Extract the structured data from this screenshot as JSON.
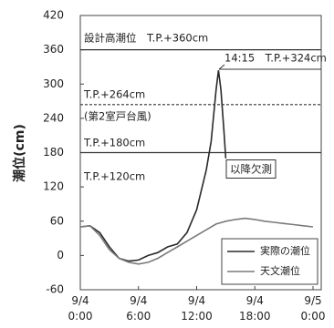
{
  "chart_data": {
    "type": "line",
    "y_label": "潮位(cm)",
    "ylim": [
      -60,
      420
    ],
    "yticks": [
      -60,
      0,
      60,
      120,
      180,
      240,
      300,
      360,
      420
    ],
    "xlim": [
      0,
      24
    ],
    "xticks": [
      {
        "value": 0,
        "label": "9/4 0:00"
      },
      {
        "value": 6,
        "label": "9/4 6:00"
      },
      {
        "value": 12,
        "label": "9/4 12:00"
      },
      {
        "value": 18,
        "label": "9/4 18:00"
      },
      {
        "value": 24,
        "label": "9/5 0:00"
      }
    ],
    "reference_lines": [
      {
        "value": 360,
        "style": "solid"
      },
      {
        "value": 264,
        "style": "dashed"
      },
      {
        "value": 180,
        "style": "solid"
      }
    ],
    "annotations": [
      "設計高潮位　T.P.+360cm",
      "14:15　T.P.+324cm",
      "T.P.+264cm",
      "(第2室戸台風)",
      "T.P.+180cm",
      "T.P.+120cm",
      "以降欠測"
    ],
    "legend": "lower right",
    "series": [
      {
        "name": "実際の潮位",
        "color": "#2a2a2a",
        "x": [
          0,
          1,
          2,
          3,
          4,
          5,
          6,
          7,
          8,
          9,
          10,
          11,
          12,
          13,
          13.5,
          14,
          14.25,
          14.5,
          14.8,
          15
        ],
        "values": [
          50,
          52,
          40,
          15,
          -5,
          -10,
          -8,
          0,
          5,
          15,
          20,
          40,
          80,
          150,
          200,
          290,
          324,
          290,
          220,
          170
        ]
      },
      {
        "name": "天文潮位",
        "color": "#7a7a7a",
        "x": [
          0,
          1,
          2,
          3,
          4,
          5,
          6,
          7,
          8,
          9,
          10,
          11,
          12,
          13,
          14,
          15,
          16,
          17,
          18,
          19,
          20,
          21,
          22,
          23,
          24
        ],
        "values": [
          50,
          52,
          35,
          10,
          -5,
          -12,
          -15,
          -12,
          -5,
          5,
          15,
          25,
          35,
          45,
          55,
          60,
          63,
          65,
          63,
          60,
          58,
          56,
          54,
          52,
          50
        ]
      }
    ]
  }
}
